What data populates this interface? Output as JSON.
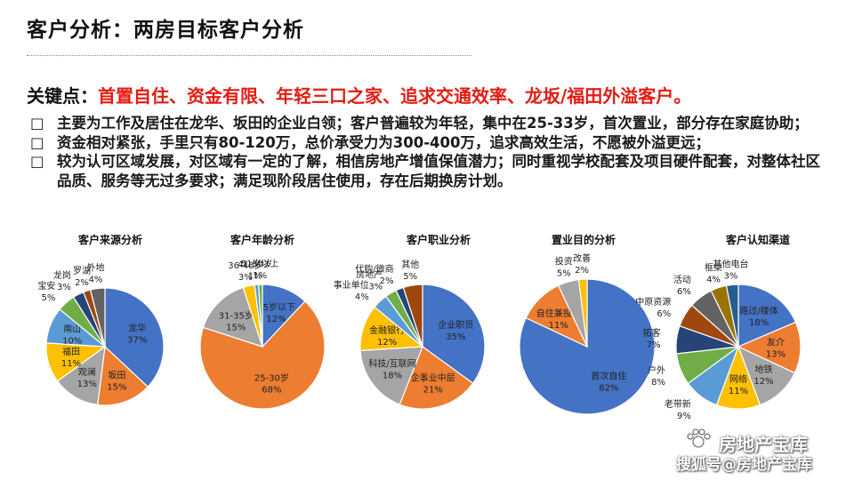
{
  "page": {
    "title": "客户分析：两房目标客户分析",
    "key_label": "关键点：",
    "key_points": "首置自住、资金有限、年轻三口之家、追求交通效率、龙坂/福田外溢客户。",
    "bullet_marker": "□",
    "bullets": [
      "主要为工作及居住在龙华、坂田的企业白领；客户普遍较为年轻，集中在25-33岁，首次置业，部分存在家庭协助；",
      "资金相对紧张，手里只有80-120万，总价承受力为300-400万，追求高效生活，不愿被外溢更远；",
      "较为认可区域发展，对区域有一定的了解，相信房地产增值保值潜力；同时重视学校配套及项目硬件配套，对整体社区品质、服务等无过多要求；满足现阶段居住使用，存在后期换房计划。"
    ]
  },
  "watermark": {
    "line1": "房地产宝库",
    "line2": "搜狐号@房地产宝库"
  },
  "chart_data": [
    {
      "type": "pie",
      "title": "客户来源分析",
      "categories": [
        "龙华",
        "坂田",
        "观澜",
        "福田",
        "南山",
        "宝安",
        "龙岗",
        "罗湖",
        "外地"
      ],
      "values": [
        37,
        15,
        13,
        11,
        10,
        5,
        3,
        2,
        4
      ],
      "value_labels": [
        "37%",
        "15%",
        "13%",
        "11%",
        "10%",
        "5%",
        "3%",
        "2%",
        "4%"
      ],
      "colors": [
        "#4472c4",
        "#ed7d31",
        "#a5a5a5",
        "#ffc000",
        "#5b9bd5",
        "#70ad47",
        "#264478",
        "#9e480e",
        "#636363"
      ]
    },
    {
      "type": "pie",
      "title": "客户年龄分析",
      "categories": [
        "25岁以下",
        "25-30岁",
        "31-35岁",
        "36-40岁",
        "41-50岁",
        "51岁以上"
      ],
      "values": [
        12,
        68,
        15,
        3,
        1,
        1
      ],
      "value_labels": [
        "12%",
        "68%",
        "15%",
        "3%",
        "1%",
        "1%"
      ],
      "colors": [
        "#4472c4",
        "#ed7d31",
        "#a5a5a5",
        "#ffc000",
        "#5b9bd5",
        "#70ad47"
      ]
    },
    {
      "type": "pie",
      "title": "客户职业分析",
      "categories": [
        "企业职员",
        "企事业中层",
        "科技/互联网",
        "金融银行",
        "事业单位",
        "房地产",
        "代购/微商",
        "其他"
      ],
      "values": [
        35,
        21,
        18,
        12,
        4,
        3,
        2,
        5
      ],
      "value_labels": [
        "35%",
        "21%",
        "18%",
        "12%",
        "4%",
        "3%",
        "2%",
        "5%"
      ],
      "colors": [
        "#4472c4",
        "#ed7d31",
        "#a5a5a5",
        "#ffc000",
        "#5b9bd5",
        "#70ad47",
        "#264478",
        "#9e480e"
      ]
    },
    {
      "type": "pie",
      "title": "置业目的分析",
      "categories": [
        "首次自住",
        "自住兼投资",
        "投资",
        "改善"
      ],
      "values": [
        82,
        11,
        5,
        2
      ],
      "value_labels": [
        "82%",
        "11%",
        "5%",
        "2%"
      ],
      "colors": [
        "#4472c4",
        "#ed7d31",
        "#a5a5a5",
        "#ffc000"
      ]
    },
    {
      "type": "pie",
      "title": "客户认知渠道",
      "categories": [
        "路过/楼体",
        "友介",
        "地铁",
        "网络",
        "老带新",
        "户外",
        "拓客",
        "中原资源",
        "活动",
        "框架",
        "其他电台"
      ],
      "values": [
        18,
        13,
        12,
        11,
        9,
        8,
        7,
        6,
        6,
        4,
        3
      ],
      "value_labels": [
        "18%",
        "13%",
        "12%",
        "11%",
        "9%",
        "8%",
        "7%",
        "6%",
        "6%",
        "4%",
        "3%"
      ],
      "colors": [
        "#4472c4",
        "#ed7d31",
        "#a5a5a5",
        "#ffc000",
        "#5b9bd5",
        "#70ad47",
        "#264478",
        "#9e480e",
        "#636363",
        "#997300",
        "#255e91"
      ]
    }
  ]
}
